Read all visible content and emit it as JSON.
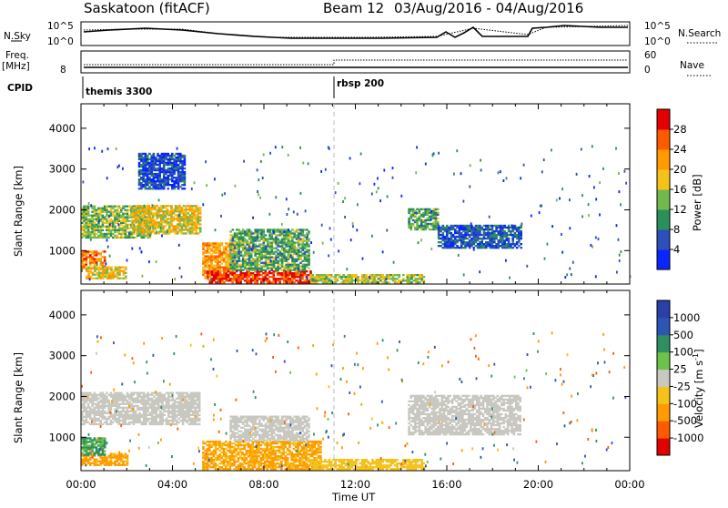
{
  "header": {
    "radar": "Saskatoon (fitACF)",
    "beam_label": "Beam 12",
    "date_range": "03/Aug/2016 - 04/Aug/2016"
  },
  "summary": {
    "nsky_label": "N.Sky",
    "nsky_ticks": [
      "10^5",
      "10^0"
    ],
    "nsearch_label": "N.Search",
    "nsearch_ticks": [
      "10^5",
      "10^0"
    ],
    "freq_label": "Freq.",
    "freq_unit": "[MHz]",
    "freq_tick": "8",
    "nave_label": "Nave",
    "nave_ticks": [
      "60",
      "0"
    ],
    "cpid_label": "CPID",
    "cpid_entries": [
      {
        "name": "themis 3300",
        "start_ut": "00:00"
      },
      {
        "name": "rbsp 200",
        "start_ut": "11:00"
      }
    ]
  },
  "colors": {
    "power": [
      "#0a26ff",
      "#2d4fb8",
      "#2a8f5a",
      "#72b84e",
      "#f4c21a",
      "#ff9a00",
      "#ff5a00",
      "#e30000"
    ],
    "velocity": [
      "#e00000",
      "#ff5a00",
      "#ff9a00",
      "#f4c21a",
      "#c8c8c0",
      "#6cc24a",
      "#2f8f60",
      "#2d55b4",
      "#2a40a8"
    ]
  },
  "chart_data": [
    {
      "type": "heatmap",
      "panel": "power",
      "x_label": "Time UT",
      "x_range_hours": [
        0,
        24
      ],
      "x_ticks": [
        "00:00",
        "04:00",
        "08:00",
        "12:00",
        "16:00",
        "20:00",
        "00:00"
      ],
      "ylabel": "Slant Range [km]",
      "ylim": [
        180,
        4600
      ],
      "y_ticks": [
        1000,
        2000,
        3000,
        4000
      ],
      "colorbar": {
        "label": "Power [dB]",
        "range": [
          0,
          32
        ],
        "ticks": [
          4,
          8,
          12,
          16,
          20,
          24,
          28
        ]
      },
      "regions": [
        {
          "t0": 0.0,
          "t1": 3.0,
          "r0": 1300,
          "r1": 2100,
          "value": 14
        },
        {
          "t0": 0.0,
          "t1": 1.0,
          "r0": 550,
          "r1": 1000,
          "value": 24
        },
        {
          "t0": 0.2,
          "t1": 2.0,
          "r0": 300,
          "r1": 600,
          "value": 18
        },
        {
          "t0": 2.2,
          "t1": 5.2,
          "r0": 1400,
          "r1": 2100,
          "value": 18
        },
        {
          "t0": 2.5,
          "t1": 4.5,
          "r0": 2500,
          "r1": 3400,
          "value": 5
        },
        {
          "t0": 5.3,
          "t1": 6.7,
          "r0": 300,
          "r1": 1200,
          "value": 22
        },
        {
          "t0": 5.5,
          "t1": 10.0,
          "r0": 200,
          "r1": 500,
          "value": 28
        },
        {
          "t0": 6.5,
          "t1": 10.0,
          "r0": 500,
          "r1": 1500,
          "value": 12
        },
        {
          "t0": 10.0,
          "t1": 15.0,
          "r0": 200,
          "r1": 400,
          "value": 16
        },
        {
          "t0": 14.3,
          "t1": 15.6,
          "r0": 1500,
          "r1": 2000,
          "value": 12
        },
        {
          "t0": 15.6,
          "t1": 19.2,
          "r0": 1050,
          "r1": 1600,
          "value": 6
        }
      ]
    },
    {
      "type": "heatmap",
      "panel": "velocity",
      "x_label": "Time UT",
      "x_range_hours": [
        0,
        24
      ],
      "x_ticks": [
        "00:00",
        "04:00",
        "08:00",
        "12:00",
        "16:00",
        "20:00",
        "00:00"
      ],
      "ylabel": "Slant Range [km]",
      "ylim": [
        180,
        4600
      ],
      "y_ticks": [
        1000,
        2000,
        3000,
        4000
      ],
      "colorbar": {
        "label": "Velocity [m s^-1]",
        "ticks": [
          "-1000",
          "-500",
          "-100",
          "-25",
          "25",
          "100",
          "500",
          "1000"
        ]
      },
      "regions": [
        {
          "t0": 0.0,
          "t1": 5.2,
          "r0": 1300,
          "r1": 2100,
          "value": 0
        },
        {
          "t0": 0.0,
          "t1": 2.0,
          "r0": 300,
          "r1": 600,
          "value": -150
        },
        {
          "t0": 0.0,
          "t1": 1.0,
          "r0": 550,
          "r1": 1000,
          "value": 120
        },
        {
          "t0": 5.3,
          "t1": 10.5,
          "r0": 200,
          "r1": 900,
          "value": -120
        },
        {
          "t0": 6.5,
          "t1": 10.0,
          "r0": 900,
          "r1": 1500,
          "value": 5
        },
        {
          "t0": 10.0,
          "t1": 15.0,
          "r0": 200,
          "r1": 450,
          "value": -60
        },
        {
          "t0": 14.3,
          "t1": 19.2,
          "r0": 1050,
          "r1": 2000,
          "value": 0
        }
      ]
    }
  ]
}
